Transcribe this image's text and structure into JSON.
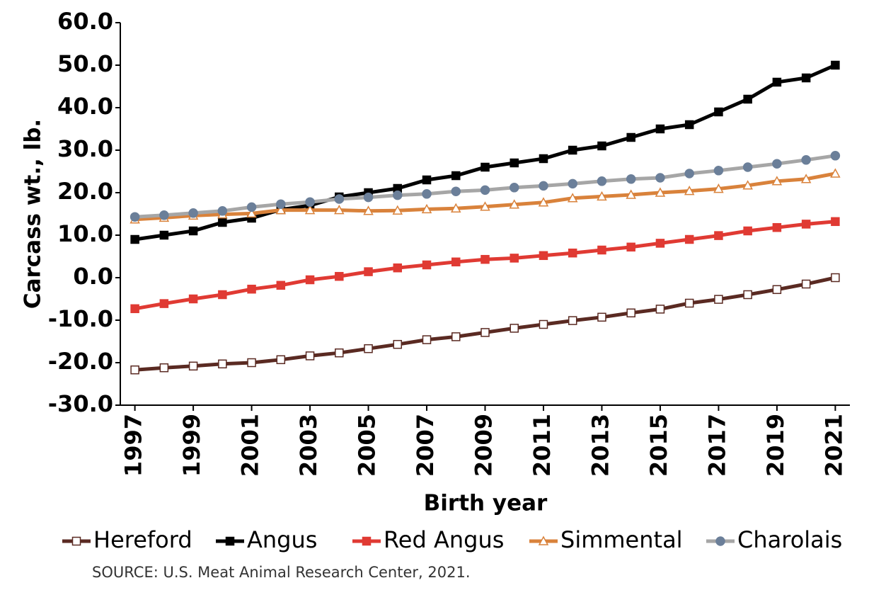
{
  "chart_data": {
    "type": "line",
    "y_label": "Carcass wt., lb.",
    "x_label": "Birth year",
    "source": "SOURCE: U.S. Meat Animal Research Center, 2021.",
    "x": [
      1997,
      1998,
      1999,
      2000,
      2001,
      2002,
      2003,
      2004,
      2005,
      2006,
      2007,
      2008,
      2009,
      2010,
      2011,
      2012,
      2013,
      2014,
      2015,
      2016,
      2017,
      2018,
      2019,
      2020,
      2021
    ],
    "xlim": [
      1996.5,
      2021.5
    ],
    "xticks": [
      1997,
      1999,
      2001,
      2003,
      2005,
      2007,
      2009,
      2011,
      2013,
      2015,
      2017,
      2019,
      2021
    ],
    "ylim": [
      -30,
      60
    ],
    "yticks": [
      {
        "value": -30,
        "label": "-30.0"
      },
      {
        "value": -20,
        "label": "-20.0"
      },
      {
        "value": -10,
        "label": "-10.0"
      },
      {
        "value": 0,
        "label": "0.0"
      },
      {
        "value": 10,
        "label": "10.0"
      },
      {
        "value": 20,
        "label": "20.0"
      },
      {
        "value": 30,
        "label": "30.0"
      },
      {
        "value": 40,
        "label": "40.0"
      },
      {
        "value": 50,
        "label": "50.0"
      },
      {
        "value": 60,
        "label": "60.0"
      }
    ],
    "grid": false,
    "series": [
      {
        "name": "Hereford",
        "color": "#5a2a22",
        "marker": "square",
        "marker_fill": "#ffffff",
        "values": [
          -21.7,
          -21.2,
          -20.8,
          -20.3,
          -20.0,
          -19.3,
          -18.4,
          -17.7,
          -16.7,
          -15.7,
          -14.6,
          -13.9,
          -12.9,
          -11.9,
          -11.0,
          -10.1,
          -9.3,
          -8.3,
          -7.4,
          -6.0,
          -5.1,
          -4.0,
          -2.8,
          -1.5,
          0.0
        ]
      },
      {
        "name": "Angus",
        "color": "#000000",
        "marker": "square",
        "marker_fill": "#000000",
        "values": [
          9,
          10,
          11,
          13,
          14,
          16,
          17,
          19,
          20,
          21,
          23,
          24,
          26,
          27,
          28,
          30,
          31,
          33,
          35,
          36,
          39,
          42,
          46,
          47,
          50
        ]
      },
      {
        "name": "Red Angus",
        "color": "#e03a33",
        "marker": "square",
        "marker_fill": "#e03a33",
        "values": [
          -7.3,
          -6.1,
          -5.0,
          -4.0,
          -2.7,
          -1.8,
          -0.5,
          0.3,
          1.4,
          2.3,
          3.0,
          3.7,
          4.3,
          4.6,
          5.2,
          5.8,
          6.5,
          7.2,
          8.1,
          9.0,
          9.9,
          11.0,
          11.8,
          12.6,
          13.2
        ]
      },
      {
        "name": "Simmental",
        "color": "#d9823b",
        "marker": "triangle",
        "marker_fill": "#ffffff",
        "values": [
          13.7,
          14.1,
          14.6,
          14.9,
          15.1,
          15.9,
          15.9,
          15.9,
          15.7,
          15.8,
          16.1,
          16.3,
          16.7,
          17.2,
          17.7,
          18.7,
          19.1,
          19.5,
          20.0,
          20.4,
          20.9,
          21.7,
          22.7,
          23.2,
          24.5
        ]
      },
      {
        "name": "Charolais",
        "color": "#a6a6a6",
        "marker": "circle",
        "marker_fill": "#6b7f99",
        "values": [
          14.3,
          14.7,
          15.2,
          15.7,
          16.6,
          17.3,
          17.8,
          18.5,
          18.9,
          19.4,
          19.7,
          20.3,
          20.6,
          21.2,
          21.6,
          22.1,
          22.7,
          23.2,
          23.5,
          24.5,
          25.2,
          26.0,
          26.8,
          27.7,
          28.7
        ]
      }
    ]
  }
}
